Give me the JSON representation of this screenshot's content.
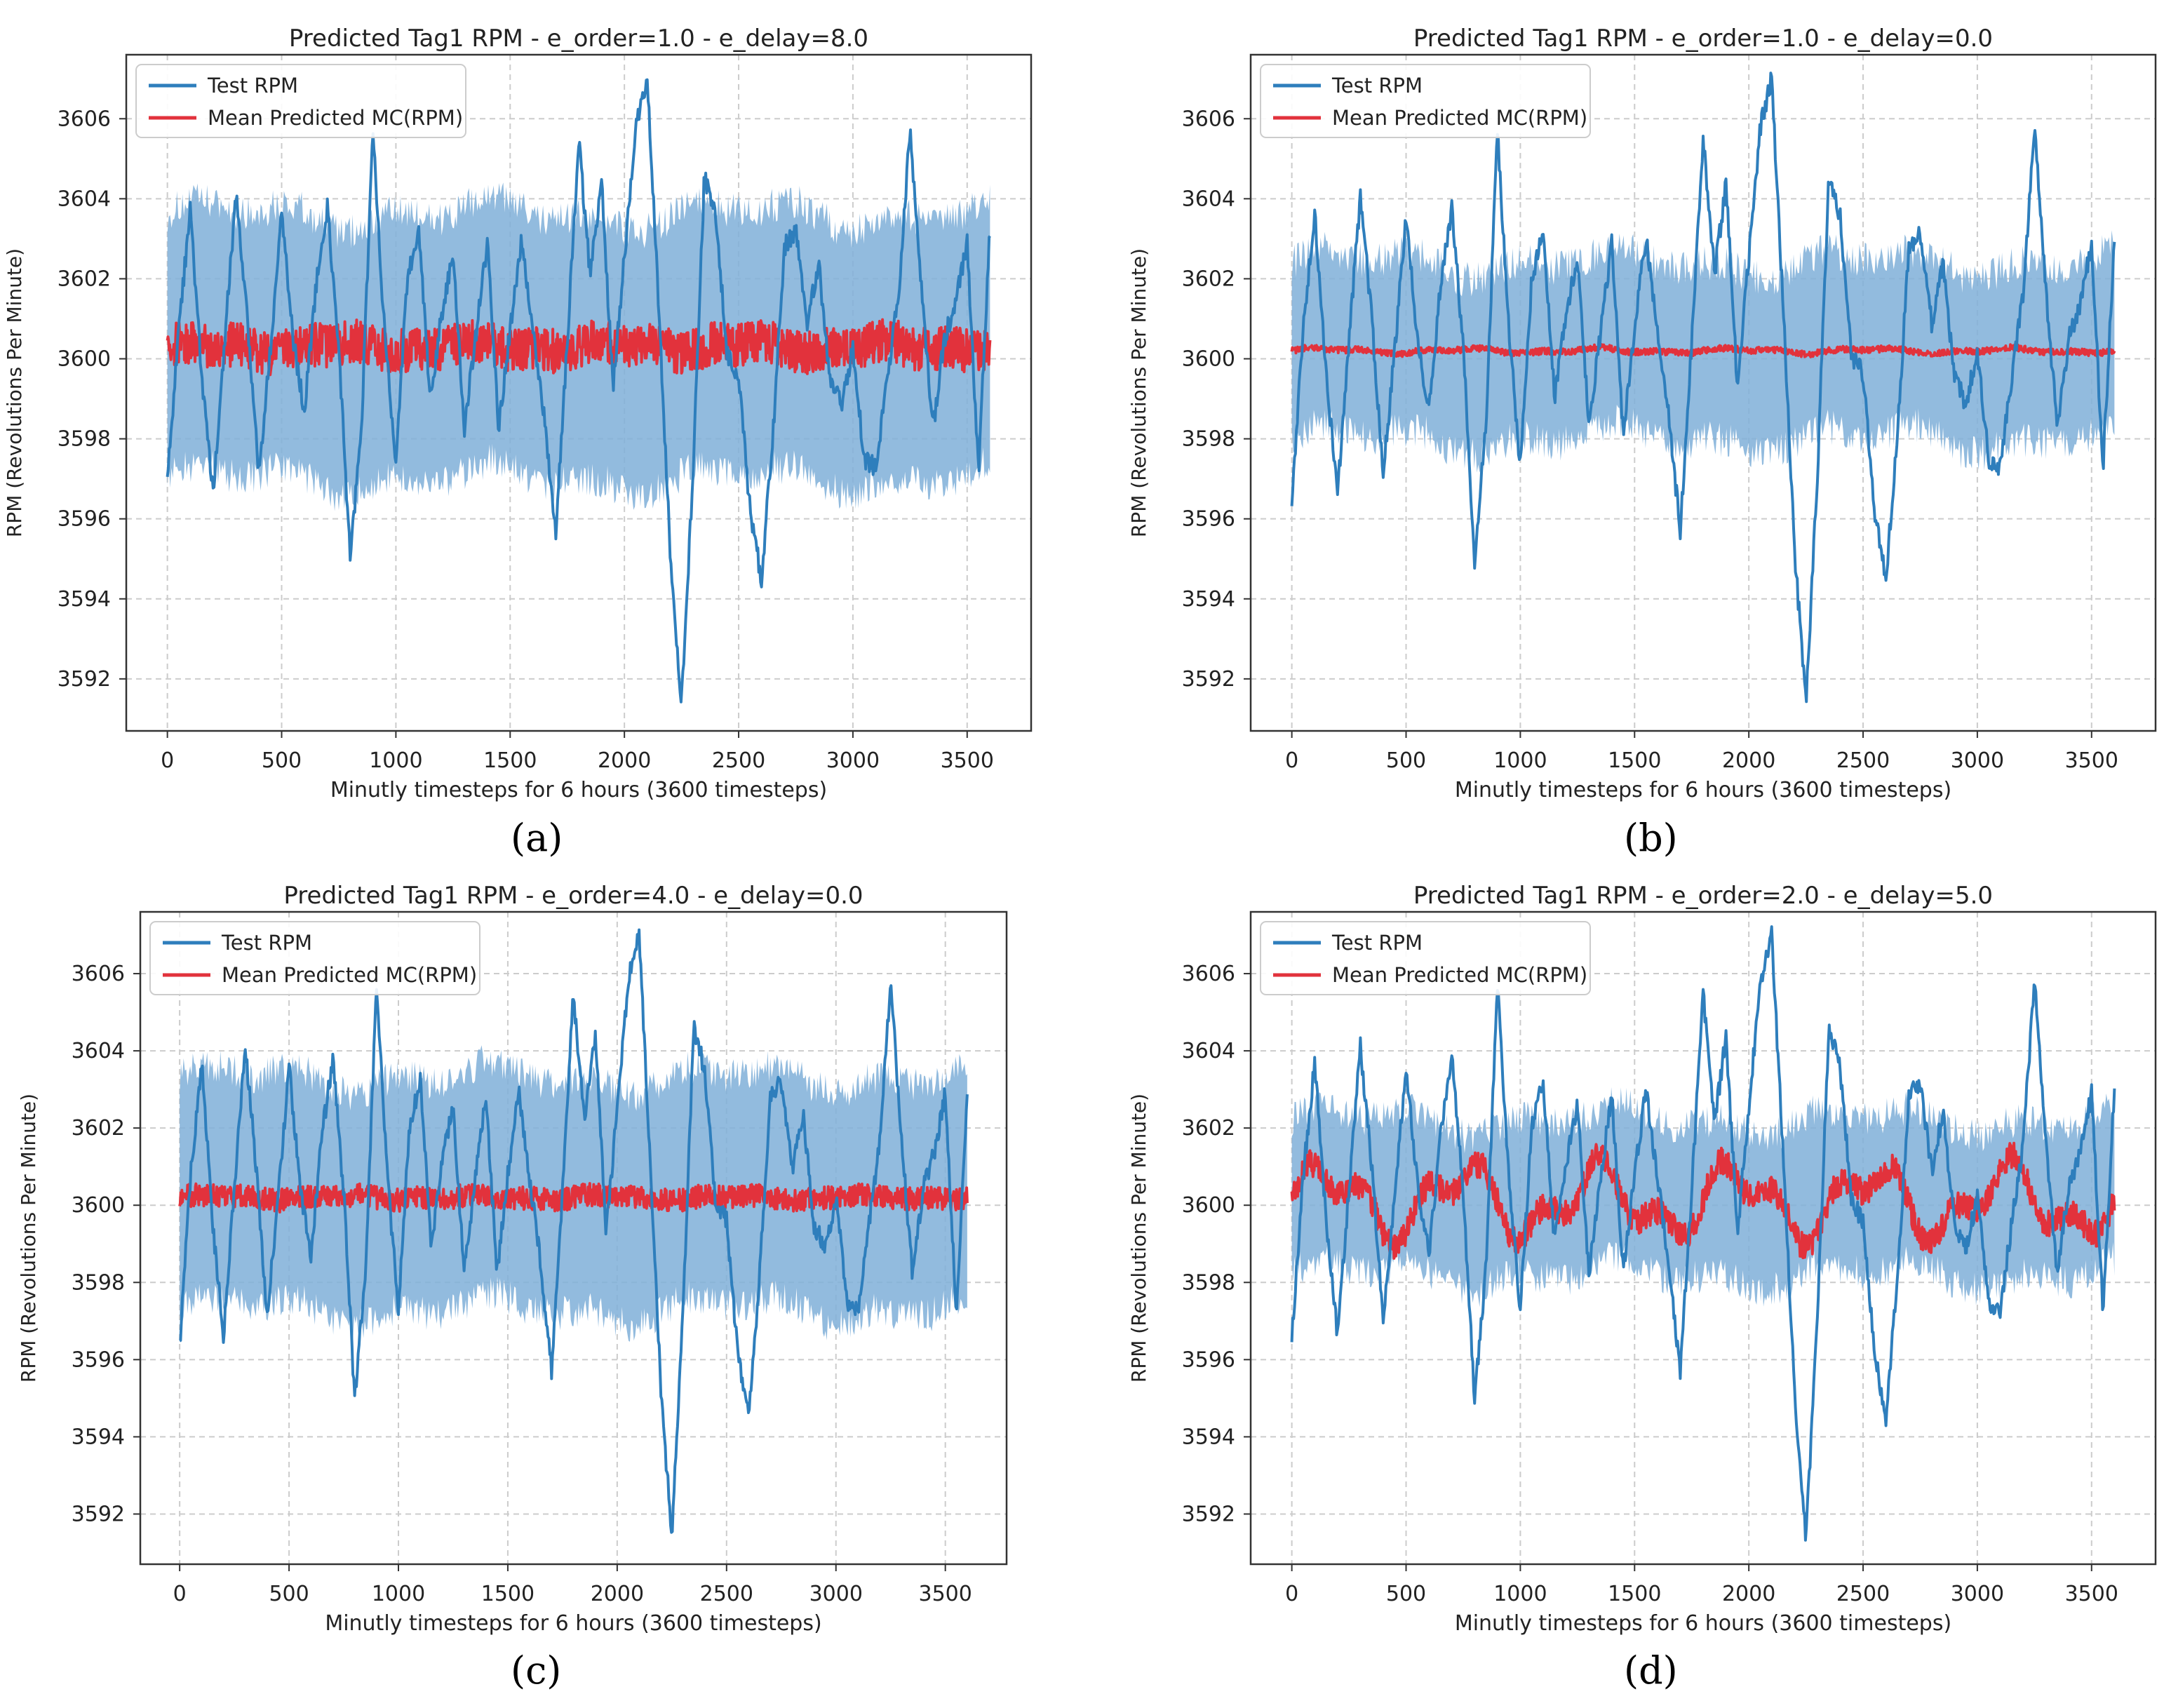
{
  "figure": {
    "panel_labels": [
      "(a)",
      "(b)",
      "(c)",
      "(d)"
    ]
  },
  "colors": {
    "test": "#2e7ebc",
    "predicted": "#e2323c",
    "band": "#7fafd8",
    "grid": "#cccccc",
    "axis": "#333333"
  },
  "chart_data": [
    {
      "id": "a",
      "type": "line",
      "title": "Predicted Tag1 RPM  -  e_order=1.0  -  e_delay=8.0",
      "xlabel": "Minutly timesteps for 6 hours (3600 timesteps)",
      "ylabel": "RPM (Revolutions Per Minute)",
      "xlim": [
        -180,
        3780
      ],
      "ylim": [
        3590.7,
        3607.6
      ],
      "xticks": [
        0,
        500,
        1000,
        1500,
        2000,
        2500,
        3000,
        3500
      ],
      "yticks": [
        3592,
        3594,
        3596,
        3598,
        3600,
        3602,
        3604,
        3606
      ],
      "grid": true,
      "legend": {
        "position": "top-left",
        "entries": [
          "Test RPM",
          "Mean Predicted MC(RPM)"
        ]
      },
      "series": [
        {
          "name": "Test RPM",
          "role": "test",
          "x": [
            0,
            50,
            100,
            150,
            200,
            250,
            300,
            350,
            400,
            450,
            500,
            550,
            600,
            650,
            700,
            750,
            800,
            850,
            900,
            950,
            1000,
            1050,
            1100,
            1150,
            1200,
            1250,
            1300,
            1350,
            1400,
            1450,
            1500,
            1550,
            1600,
            1650,
            1700,
            1750,
            1800,
            1850,
            1900,
            1950,
            2000,
            2050,
            2100,
            2150,
            2200,
            2250,
            2300,
            2350,
            2400,
            2450,
            2500,
            2550,
            2600,
            2650,
            2700,
            2750,
            2800,
            2850,
            2900,
            2950,
            3000,
            3050,
            3100,
            3150,
            3200,
            3250,
            3300,
            3350,
            3400,
            3450,
            3500,
            3550,
            3600
          ],
          "y": [
            3596.9,
            3600.8,
            3603.7,
            3599.6,
            3596.6,
            3600.4,
            3604.1,
            3601.0,
            3597.1,
            3600.2,
            3603.6,
            3600.5,
            3598.7,
            3601.8,
            3603.8,
            3600.3,
            3595.0,
            3598.4,
            3605.7,
            3600.7,
            3597.3,
            3602.0,
            3603.2,
            3599.0,
            3601.1,
            3602.6,
            3598.3,
            3600.6,
            3602.9,
            3598.2,
            3600.8,
            3603.0,
            3600.7,
            3598.5,
            3595.7,
            3600.4,
            3605.5,
            3602.1,
            3604.4,
            3599.3,
            3602.5,
            3605.8,
            3607.0,
            3601.3,
            3595.2,
            3591.4,
            3597.1,
            3604.6,
            3603.5,
            3600.1,
            3599.6,
            3596.2,
            3594.5,
            3598.1,
            3602.8,
            3603.2,
            3600.9,
            3602.4,
            3599.5,
            3598.9,
            3600.2,
            3597.5,
            3597.3,
            3599.5,
            3601.6,
            3605.8,
            3601.7,
            3598.2,
            3600.5,
            3601.4,
            3602.9,
            3597.2,
            3603.3
          ]
        },
        {
          "name": "Mean Predicted MC(RPM)",
          "role": "predicted",
          "mean": 3600.3,
          "noise": 0.55,
          "amplitude": 0.1
        }
      ],
      "band": {
        "lower": 3597.0,
        "upper": 3603.6
      }
    },
    {
      "id": "b",
      "type": "line",
      "title": "Predicted Tag1 RPM  -  e_order=1.0  -  e_delay=0.0",
      "xlabel": "Minutly timesteps for 6 hours (3600 timesteps)",
      "ylabel": "RPM (Revolutions Per Minute)",
      "xlim": [
        -180,
        3780
      ],
      "ylim": [
        3590.7,
        3607.6
      ],
      "xticks": [
        0,
        500,
        1000,
        1500,
        2000,
        2500,
        3000,
        3500
      ],
      "yticks": [
        3592,
        3594,
        3596,
        3598,
        3600,
        3602,
        3604,
        3606
      ],
      "grid": true,
      "legend": {
        "position": "top-left",
        "entries": [
          "Test RPM",
          "Mean Predicted MC(RPM)"
        ]
      },
      "series": [
        {
          "name": "Test RPM",
          "role": "test",
          "x": [
            0,
            50,
            100,
            150,
            200,
            250,
            300,
            350,
            400,
            450,
            500,
            550,
            600,
            650,
            700,
            750,
            800,
            850,
            900,
            950,
            1000,
            1050,
            1100,
            1150,
            1200,
            1250,
            1300,
            1350,
            1400,
            1450,
            1500,
            1550,
            1600,
            1650,
            1700,
            1750,
            1800,
            1850,
            1900,
            1950,
            2000,
            2050,
            2100,
            2150,
            2200,
            2250,
            2300,
            2350,
            2400,
            2450,
            2500,
            2550,
            2600,
            2650,
            2700,
            2750,
            2800,
            2850,
            2900,
            2950,
            3000,
            3050,
            3100,
            3150,
            3200,
            3250,
            3300,
            3350,
            3400,
            3450,
            3500,
            3550,
            3600
          ],
          "y": [
            3596.4,
            3600.8,
            3603.7,
            3599.6,
            3596.6,
            3600.4,
            3604.1,
            3601.0,
            3597.1,
            3600.2,
            3603.6,
            3600.5,
            3598.7,
            3601.8,
            3603.8,
            3600.3,
            3595.0,
            3598.4,
            3605.7,
            3600.7,
            3597.3,
            3602.0,
            3603.2,
            3599.0,
            3601.1,
            3602.6,
            3598.3,
            3600.6,
            3602.9,
            3598.2,
            3600.8,
            3603.0,
            3600.7,
            3598.5,
            3595.7,
            3600.4,
            3605.5,
            3602.1,
            3604.4,
            3599.3,
            3602.5,
            3605.8,
            3607.0,
            3601.3,
            3595.2,
            3591.4,
            3597.1,
            3604.6,
            3603.5,
            3600.1,
            3599.6,
            3596.2,
            3594.5,
            3598.1,
            3602.8,
            3603.2,
            3600.9,
            3602.4,
            3599.5,
            3598.9,
            3600.2,
            3597.5,
            3597.3,
            3599.5,
            3601.6,
            3605.8,
            3601.7,
            3598.2,
            3600.5,
            3601.4,
            3602.9,
            3597.2,
            3603.1
          ]
        },
        {
          "name": "Mean Predicted MC(RPM)",
          "role": "predicted",
          "mean": 3600.2,
          "noise": 0.08,
          "amplitude": 0.05
        }
      ],
      "band": {
        "lower": 3598.0,
        "upper": 3602.4
      }
    },
    {
      "id": "c",
      "type": "line",
      "title": "Predicted Tag1 RPM  -  e_order=4.0  -  e_delay=0.0",
      "xlabel": "Minutly timesteps for 6 hours (3600 timesteps)",
      "ylabel": "RPM (Revolutions Per Minute)",
      "xlim": [
        -180,
        3780
      ],
      "ylim": [
        3590.7,
        3607.6
      ],
      "xticks": [
        0,
        500,
        1000,
        1500,
        2000,
        2500,
        3000,
        3500
      ],
      "yticks": [
        3592,
        3594,
        3596,
        3598,
        3600,
        3602,
        3604,
        3606
      ],
      "grid": true,
      "legend": {
        "position": "top-left",
        "entries": [
          "Test RPM",
          "Mean Predicted MC(RPM)"
        ]
      },
      "series": [
        {
          "name": "Test RPM",
          "role": "test",
          "x": [
            0,
            50,
            100,
            150,
            200,
            250,
            300,
            350,
            400,
            450,
            500,
            550,
            600,
            650,
            700,
            750,
            800,
            850,
            900,
            950,
            1000,
            1050,
            1100,
            1150,
            1200,
            1250,
            1300,
            1350,
            1400,
            1450,
            1500,
            1550,
            1600,
            1650,
            1700,
            1750,
            1800,
            1850,
            1900,
            1950,
            2000,
            2050,
            2100,
            2150,
            2200,
            2250,
            2300,
            2350,
            2400,
            2450,
            2500,
            2550,
            2600,
            2650,
            2700,
            2750,
            2800,
            2850,
            2900,
            2950,
            3000,
            3050,
            3100,
            3150,
            3200,
            3250,
            3300,
            3350,
            3400,
            3450,
            3500,
            3550,
            3600
          ],
          "y": [
            3596.3,
            3600.8,
            3603.7,
            3599.6,
            3596.6,
            3600.4,
            3604.1,
            3601.0,
            3597.1,
            3600.2,
            3603.6,
            3600.5,
            3598.7,
            3601.8,
            3603.8,
            3600.3,
            3595.0,
            3598.4,
            3605.7,
            3600.7,
            3597.3,
            3602.0,
            3603.2,
            3599.0,
            3601.1,
            3602.6,
            3598.3,
            3600.6,
            3602.9,
            3598.2,
            3600.8,
            3603.0,
            3600.7,
            3598.5,
            3595.7,
            3600.4,
            3605.5,
            3602.1,
            3604.4,
            3599.3,
            3602.5,
            3605.8,
            3607.0,
            3601.3,
            3595.2,
            3591.4,
            3597.1,
            3604.6,
            3603.5,
            3600.1,
            3599.6,
            3596.2,
            3594.5,
            3598.1,
            3602.8,
            3603.2,
            3600.9,
            3602.4,
            3599.5,
            3598.9,
            3600.2,
            3597.5,
            3597.3,
            3599.5,
            3601.6,
            3605.8,
            3601.7,
            3598.2,
            3600.5,
            3601.4,
            3602.9,
            3597.2,
            3603.0
          ]
        },
        {
          "name": "Mean Predicted MC(RPM)",
          "role": "predicted",
          "mean": 3600.2,
          "noise": 0.3,
          "amplitude": 0.05
        }
      ],
      "band": {
        "lower": 3597.3,
        "upper": 3603.3
      }
    },
    {
      "id": "d",
      "type": "line",
      "title": "Predicted Tag1 RPM  -  e_order=2.0  -  e_delay=5.0",
      "xlabel": "Minutly timesteps for 6 hours (3600 timesteps)",
      "ylabel": "RPM (Revolutions Per Minute)",
      "xlim": [
        -180,
        3780
      ],
      "ylim": [
        3590.7,
        3607.6
      ],
      "xticks": [
        0,
        500,
        1000,
        1500,
        2000,
        2500,
        3000,
        3500
      ],
      "yticks": [
        3592,
        3594,
        3596,
        3598,
        3600,
        3602,
        3604,
        3606
      ],
      "grid": true,
      "legend": {
        "position": "top-left",
        "entries": [
          "Test RPM",
          "Mean Predicted MC(RPM)"
        ]
      },
      "series": [
        {
          "name": "Test RPM",
          "role": "test",
          "x": [
            0,
            50,
            100,
            150,
            200,
            250,
            300,
            350,
            400,
            450,
            500,
            550,
            600,
            650,
            700,
            750,
            800,
            850,
            900,
            950,
            1000,
            1050,
            1100,
            1150,
            1200,
            1250,
            1300,
            1350,
            1400,
            1450,
            1500,
            1550,
            1600,
            1650,
            1700,
            1750,
            1800,
            1850,
            1900,
            1950,
            2000,
            2050,
            2100,
            2150,
            2200,
            2250,
            2300,
            2350,
            2400,
            2450,
            2500,
            2550,
            2600,
            2650,
            2700,
            2750,
            2800,
            2850,
            2900,
            2950,
            3000,
            3050,
            3100,
            3150,
            3200,
            3250,
            3300,
            3350,
            3400,
            3450,
            3500,
            3550,
            3600
          ],
          "y": [
            3596.5,
            3600.8,
            3603.7,
            3599.6,
            3596.6,
            3600.4,
            3604.1,
            3601.0,
            3597.1,
            3600.2,
            3603.6,
            3600.5,
            3598.7,
            3601.8,
            3603.8,
            3600.3,
            3595.0,
            3598.4,
            3605.7,
            3600.7,
            3597.3,
            3602.0,
            3603.2,
            3599.0,
            3601.1,
            3602.6,
            3598.3,
            3600.6,
            3602.9,
            3598.2,
            3600.8,
            3603.0,
            3600.7,
            3598.5,
            3595.7,
            3600.4,
            3605.5,
            3602.1,
            3604.4,
            3599.3,
            3602.5,
            3605.8,
            3607.0,
            3601.3,
            3595.2,
            3591.4,
            3597.1,
            3604.6,
            3603.5,
            3600.1,
            3599.6,
            3596.2,
            3594.5,
            3598.1,
            3602.8,
            3603.2,
            3600.9,
            3602.4,
            3599.5,
            3598.9,
            3600.2,
            3597.5,
            3597.3,
            3599.5,
            3601.6,
            3605.8,
            3601.7,
            3598.2,
            3600.5,
            3601.4,
            3602.9,
            3597.2,
            3603.1
          ]
        },
        {
          "name": "Mean Predicted MC(RPM)",
          "role": "predicted",
          "mean": 3600.1,
          "noise": 0.35,
          "amplitude": 0.75
        }
      ],
      "band": {
        "lower": 3598.2,
        "upper": 3602.2
      }
    }
  ]
}
